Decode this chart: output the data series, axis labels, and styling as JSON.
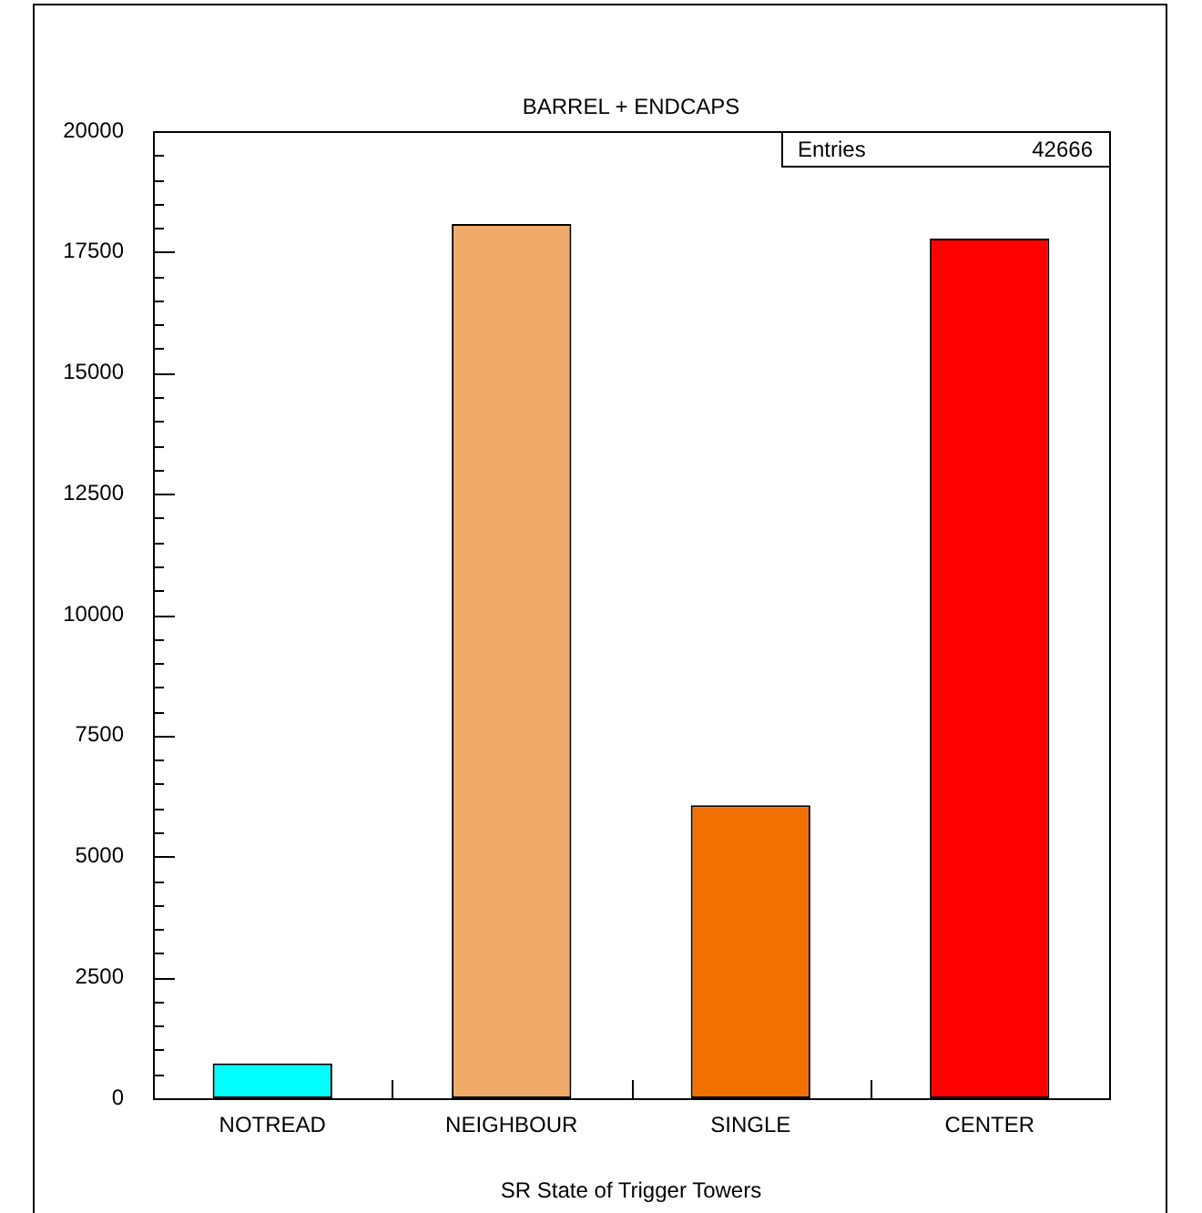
{
  "chart_data": {
    "type": "bar",
    "title": "BARREL + ENDCAPS",
    "xlabel": "SR State of Trigger Towers",
    "categories": [
      "NOTREAD",
      "NEIGHBOUR",
      "SINGLE",
      "CENTER"
    ],
    "values": [
      720,
      18080,
      6060,
      17780
    ],
    "colors": [
      "#00ffff",
      "#f0aa6a",
      "#f07000",
      "#ff0000"
    ],
    "ylim": [
      0,
      20000
    ],
    "yticks": [
      0,
      {
        "value": 500,
        "label": null
      },
      {
        "value": 1000,
        "label": null
      },
      {
        "value": 1500,
        "label": null
      },
      {
        "value": 2000,
        "label": null
      },
      2500,
      {
        "value": 3000,
        "label": null
      },
      {
        "value": 3500,
        "label": null
      },
      {
        "value": 4000,
        "label": null
      },
      {
        "value": 4500,
        "label": null
      },
      5000,
      {
        "value": 5500,
        "label": null
      },
      {
        "value": 6000,
        "label": null
      },
      {
        "value": 6500,
        "label": null
      },
      {
        "value": 7000,
        "label": null
      },
      7500,
      {
        "value": 8000,
        "label": null
      },
      {
        "value": 8500,
        "label": null
      },
      {
        "value": 9000,
        "label": null
      },
      {
        "value": 9500,
        "label": null
      },
      10000,
      {
        "value": 10500,
        "label": null
      },
      {
        "value": 11000,
        "label": null
      },
      {
        "value": 11500,
        "label": null
      },
      {
        "value": 12000,
        "label": null
      },
      12500,
      {
        "value": 13000,
        "label": null
      },
      {
        "value": 13500,
        "label": null
      },
      {
        "value": 14000,
        "label": null
      },
      {
        "value": 14500,
        "label": null
      },
      15000,
      {
        "value": 15500,
        "label": null
      },
      {
        "value": 16000,
        "label": null
      },
      {
        "value": 16500,
        "label": null
      },
      {
        "value": 17000,
        "label": null
      },
      17500,
      {
        "value": 18000,
        "label": null
      },
      {
        "value": 18500,
        "label": null
      },
      {
        "value": 19000,
        "label": null
      },
      {
        "value": 19500,
        "label": null
      },
      20000
    ],
    "annotations": [
      "Entries",
      "42666"
    ],
    "grid": false,
    "legend": false
  }
}
